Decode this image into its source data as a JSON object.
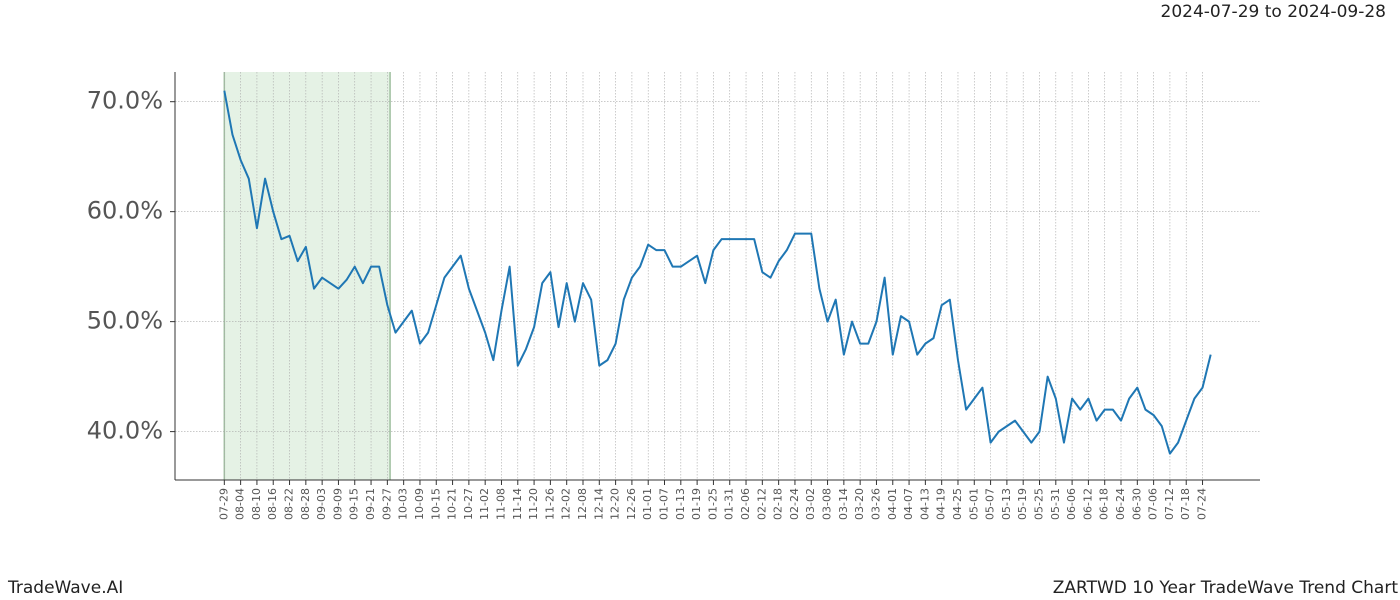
{
  "chart_data": {
    "type": "line",
    "title": "ZARTWD 10 Year TradeWave Trend Chart",
    "subtitle": "2024-07-29 to 2024-09-28",
    "brand": "TradeWave.AI",
    "x": [
      "07-29",
      "08-01",
      "08-04",
      "08-07",
      "08-10",
      "08-13",
      "08-16",
      "08-19",
      "08-22",
      "08-25",
      "08-28",
      "08-31",
      "09-03",
      "09-06",
      "09-09",
      "09-12",
      "09-15",
      "09-18",
      "09-21",
      "09-24",
      "09-27",
      "09-30",
      "10-03",
      "10-06",
      "10-09",
      "10-12",
      "10-15",
      "10-18",
      "10-21",
      "10-24",
      "10-27",
      "10-30",
      "11-02",
      "11-05",
      "11-08",
      "11-11",
      "11-14",
      "11-17",
      "11-20",
      "11-23",
      "11-26",
      "11-29",
      "12-02",
      "12-05",
      "12-08",
      "12-11",
      "12-14",
      "12-17",
      "12-20",
      "12-23",
      "12-26",
      "12-29",
      "01-01",
      "01-04",
      "01-07",
      "01-10",
      "01-13",
      "01-16",
      "01-19",
      "01-22",
      "01-25",
      "01-28",
      "01-31",
      "02-03",
      "02-06",
      "02-09",
      "02-12",
      "02-15",
      "02-18",
      "02-21",
      "02-24",
      "02-27",
      "03-02",
      "03-05",
      "03-08",
      "03-11",
      "03-14",
      "03-17",
      "03-20",
      "03-23",
      "03-26",
      "03-29",
      "04-01",
      "04-04",
      "04-07",
      "04-10",
      "04-13",
      "04-16",
      "04-19",
      "04-22",
      "04-25",
      "04-28",
      "05-01",
      "05-04",
      "05-07",
      "05-10",
      "05-13",
      "05-16",
      "05-19",
      "05-22",
      "05-25",
      "05-28",
      "05-31",
      "06-03",
      "06-06",
      "06-09",
      "06-12",
      "06-15",
      "06-18",
      "06-21",
      "06-24",
      "06-27",
      "06-30",
      "07-03",
      "07-06",
      "07-09",
      "07-12",
      "07-15",
      "07-18",
      "07-21",
      "07-24",
      "07-27"
    ],
    "series": [
      {
        "name": "ZARTWD",
        "color": "#1f77b4",
        "values": [
          71,
          67,
          64.7,
          63,
          58.5,
          63,
          60,
          57.5,
          57.8,
          55.5,
          56.8,
          53,
          54,
          53.5,
          53,
          53.8,
          55,
          53.5,
          55,
          55,
          51.5,
          49,
          50,
          51,
          48,
          49,
          51.5,
          54,
          55,
          56,
          53,
          51,
          49,
          46.5,
          51,
          55,
          46,
          47.5,
          49.5,
          53.5,
          54.5,
          49.5,
          53.5,
          50,
          53.5,
          52,
          46,
          46.5,
          48,
          52,
          54,
          55,
          57,
          56.5,
          56.5,
          55,
          55,
          55.5,
          56,
          53.5,
          56.5,
          57.5,
          57.5,
          57.5,
          57.5,
          57.5,
          54.5,
          54,
          55.5,
          56.5,
          58,
          58,
          58,
          53,
          50,
          52,
          47,
          50,
          48,
          48,
          50,
          54,
          47,
          50.5,
          50,
          47,
          48,
          48.5,
          51.5,
          52,
          46.5,
          42,
          43,
          44,
          39,
          40,
          40.5,
          41,
          40,
          39,
          40,
          45,
          43,
          39,
          43,
          42,
          43,
          41,
          42,
          42,
          41,
          43,
          44,
          42,
          41.5,
          40.5,
          38,
          39,
          41,
          43,
          44,
          47
        ]
      }
    ],
    "highlight": [
      "07-29",
      "09-28"
    ],
    "xticks": [
      "07-29",
      "08-04",
      "08-10",
      "08-16",
      "08-22",
      "08-28",
      "09-03",
      "09-09",
      "09-15",
      "09-21",
      "09-27",
      "10-03",
      "10-09",
      "10-15",
      "10-21",
      "10-27",
      "11-02",
      "11-08",
      "11-14",
      "11-20",
      "11-26",
      "12-02",
      "12-08",
      "12-14",
      "12-20",
      "12-26",
      "01-01",
      "01-07",
      "01-13",
      "01-19",
      "01-25",
      "01-31",
      "02-06",
      "02-12",
      "02-18",
      "02-24",
      "03-02",
      "03-08",
      "03-14",
      "03-20",
      "03-26",
      "04-01",
      "04-07",
      "04-13",
      "04-19",
      "04-25",
      "05-01",
      "05-07",
      "05-13",
      "05-19",
      "05-25",
      "05-31",
      "06-06",
      "06-12",
      "06-18",
      "06-24",
      "06-30",
      "07-06",
      "07-12",
      "07-18",
      "07-24"
    ],
    "ylim": [
      35.6,
      72.7
    ],
    "yticks": [
      {
        "value": 40,
        "label": "40.0%"
      },
      {
        "value": 50,
        "label": "50.0%"
      },
      {
        "value": 60,
        "label": "60.0%"
      },
      {
        "value": 70,
        "label": "70.0%"
      }
    ],
    "grid": true
  }
}
